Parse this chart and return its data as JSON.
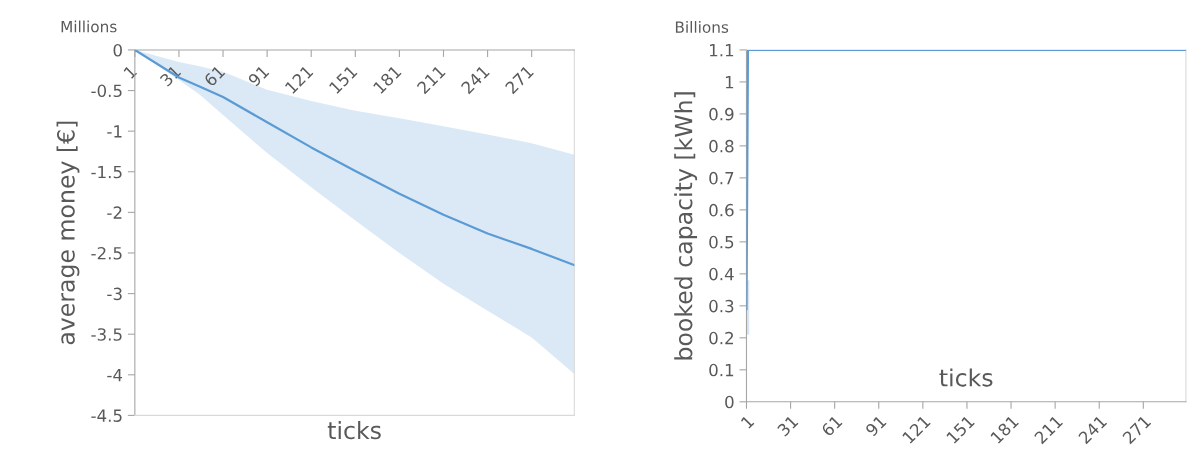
{
  "chart_data": [
    {
      "type": "line",
      "ylabel": "average money [€]",
      "xlabel": "ticks",
      "annotations": [
        "Millions"
      ],
      "xlim": [
        1,
        300
      ],
      "xticks": [
        1,
        31,
        61,
        91,
        121,
        151,
        181,
        211,
        241,
        271
      ],
      "ylim": [
        -4.5,
        0
      ],
      "yticks": [
        -4.5,
        -4,
        -3.5,
        -3,
        -2.5,
        -2,
        -1.5,
        -1,
        -0.5,
        0
      ],
      "grid": false,
      "legend": false,
      "marker": "none",
      "line_style": "solid",
      "series": [
        {
          "color": "#5b9bd5",
          "x": [
            1,
            31,
            45,
            61,
            91,
            121,
            151,
            181,
            211,
            241,
            271,
            300
          ],
          "values": [
            0,
            -0.34,
            -0.45,
            -0.58,
            -0.89,
            -1.2,
            -1.49,
            -1.77,
            -2.03,
            -2.26,
            -2.45,
            -2.65
          ],
          "upper": [
            0,
            -0.15,
            -0.2,
            -0.27,
            -0.49,
            -0.63,
            -0.75,
            -0.84,
            -0.94,
            -1.04,
            -1.15,
            -1.29
          ],
          "lower": [
            0,
            -0.37,
            -0.55,
            -0.8,
            -1.27,
            -1.69,
            -2.1,
            -2.5,
            -2.88,
            -3.21,
            -3.54,
            -3.99
          ]
        }
      ]
    },
    {
      "type": "line",
      "ylabel": "booked capacity [kWh]",
      "xlabel": "ticks",
      "annotations": [
        "Billions"
      ],
      "xlim": [
        1,
        300
      ],
      "xticks": [
        1,
        31,
        61,
        91,
        121,
        151,
        181,
        211,
        241,
        271
      ],
      "ylim": [
        0,
        1.1
      ],
      "yticks": [
        0,
        0.1,
        0.2,
        0.3,
        0.4,
        0.5,
        0.6,
        0.7,
        0.8,
        0.9,
        1,
        1.1
      ],
      "grid": false,
      "legend": false,
      "marker": "none",
      "line_style": "solid",
      "series": [
        {
          "color": "#5b9bd5",
          "x": [
            1,
            2,
            300
          ],
          "values": [
            0.29,
            1.1,
            1.1
          ],
          "errors": [
            [
              0.21,
              0.38
            ],
            null,
            null
          ]
        }
      ]
    }
  ]
}
